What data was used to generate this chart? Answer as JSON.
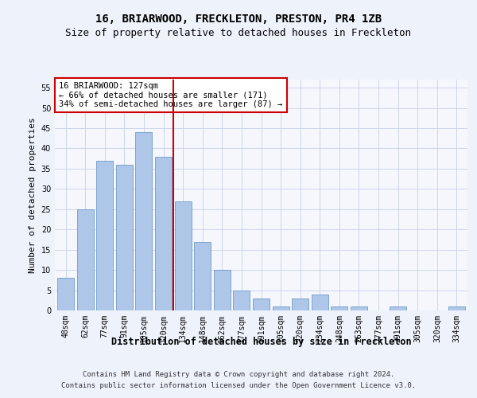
{
  "title1": "16, BRIARWOOD, FRECKLETON, PRESTON, PR4 1ZB",
  "title2": "Size of property relative to detached houses in Freckleton",
  "xlabel": "Distribution of detached houses by size in Freckleton",
  "ylabel": "Number of detached properties",
  "categories": [
    "48sqm",
    "62sqm",
    "77sqm",
    "91sqm",
    "105sqm",
    "120sqm",
    "134sqm",
    "148sqm",
    "162sqm",
    "177sqm",
    "191sqm",
    "205sqm",
    "220sqm",
    "234sqm",
    "248sqm",
    "263sqm",
    "277sqm",
    "291sqm",
    "305sqm",
    "320sqm",
    "334sqm"
  ],
  "values": [
    8,
    25,
    37,
    36,
    44,
    38,
    27,
    17,
    10,
    5,
    3,
    1,
    3,
    4,
    1,
    1,
    0,
    1,
    0,
    0,
    1
  ],
  "bar_color": "#aec6e8",
  "bar_edge_color": "#5a8fc0",
  "bar_edge_width": 0.5,
  "vline_x": 5.5,
  "vline_color": "#cc0000",
  "annotation_text": "16 BRIARWOOD: 127sqm\n← 66% of detached houses are smaller (171)\n34% of semi-detached houses are larger (87) →",
  "annotation_box_color": "#ffffff",
  "annotation_box_edge": "#cc0000",
  "ylim": [
    0,
    57
  ],
  "yticks": [
    0,
    5,
    10,
    15,
    20,
    25,
    30,
    35,
    40,
    45,
    50,
    55
  ],
  "footer1": "Contains HM Land Registry data © Crown copyright and database right 2024.",
  "footer2": "Contains public sector information licensed under the Open Government Licence v3.0.",
  "bg_color": "#eef2fa",
  "plot_bg_color": "#f5f7fd",
  "grid_color": "#c8d0e8",
  "title1_fontsize": 10,
  "title2_fontsize": 9,
  "xlabel_fontsize": 8.5,
  "ylabel_fontsize": 8,
  "tick_fontsize": 7,
  "footer_fontsize": 6.5,
  "annot_fontsize": 7.5
}
